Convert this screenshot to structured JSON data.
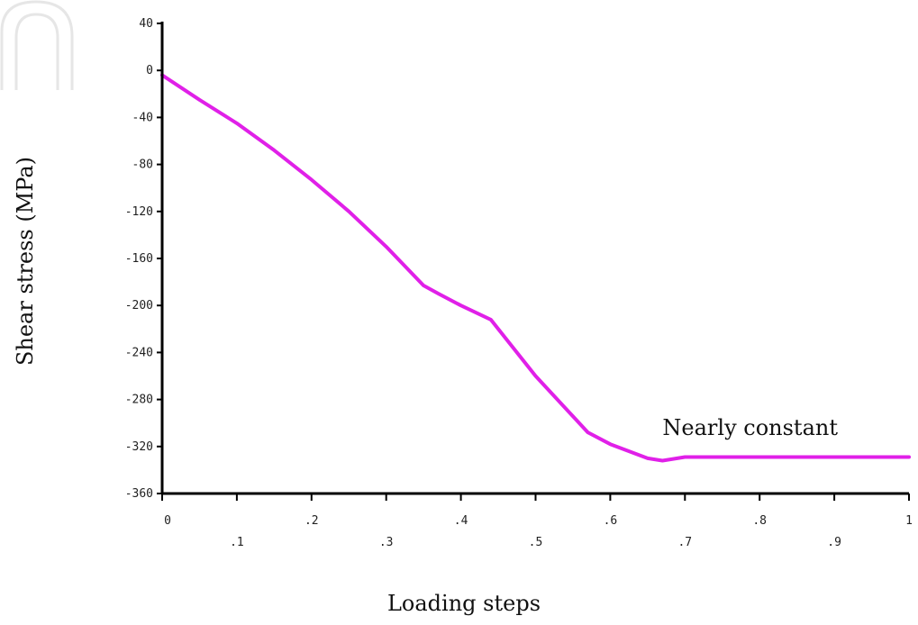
{
  "chart_data": {
    "type": "line",
    "title": "",
    "xlabel": "Loading steps",
    "ylabel": "Shear stress (MPa)",
    "xlim": [
      0,
      1
    ],
    "ylim": [
      -360,
      40
    ],
    "y_ticks": [
      40,
      0,
      -40,
      -80,
      -120,
      -160,
      -200,
      -240,
      -280,
      -320,
      -360
    ],
    "y_tick_labels": [
      "40",
      "0",
      "-40",
      "-80",
      "-120",
      "-160",
      "-200",
      "-240",
      "-280",
      "-320",
      "-360"
    ],
    "x_ticks_upper": [
      0,
      0.2,
      0.4,
      0.6,
      0.8,
      1
    ],
    "x_tick_labels_upper": [
      "0",
      ".2",
      ".4",
      ".6",
      ".8",
      "1"
    ],
    "x_ticks_lower": [
      0.1,
      0.3,
      0.5,
      0.7,
      0.9
    ],
    "x_tick_labels_lower": [
      ".1",
      ".3",
      ".5",
      ".7",
      ".9"
    ],
    "grid": false,
    "series": [
      {
        "color": "#e020e8",
        "x": [
          0,
          0.05,
          0.1,
          0.15,
          0.2,
          0.25,
          0.3,
          0.35,
          0.37,
          0.4,
          0.44,
          0.5,
          0.57,
          0.6,
          0.65,
          0.67,
          0.7,
          1.0
        ],
        "y": [
          -4,
          -25,
          -45,
          -68,
          -93,
          -120,
          -150,
          -183,
          -190,
          -200,
          -212,
          -260,
          -308,
          -318,
          -330,
          -332,
          -329,
          -329
        ]
      }
    ],
    "annotations": [
      {
        "text": "Nearly constant",
        "x": 0.67,
        "y": -310
      }
    ]
  }
}
